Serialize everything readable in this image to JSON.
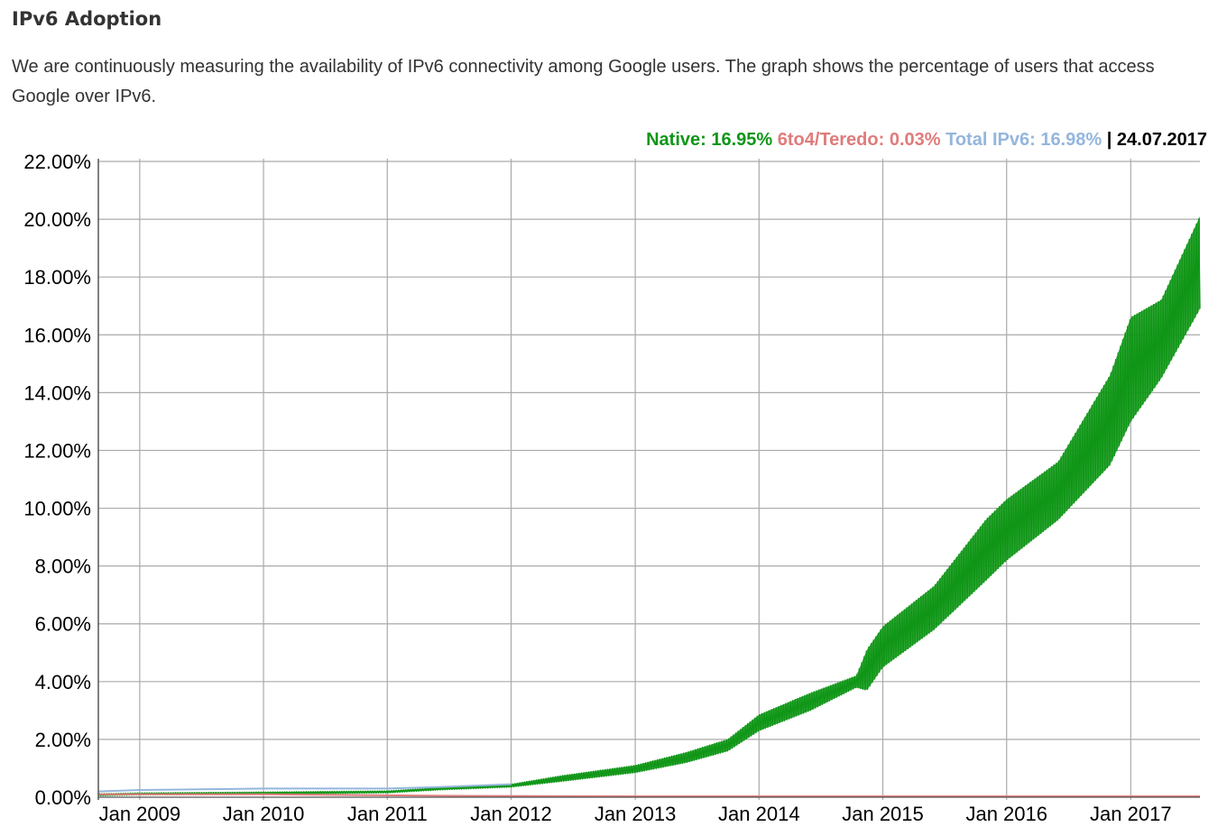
{
  "page": {
    "heading": "IPv6 Adoption",
    "intro": "We are continuously measuring the availability of IPv6 connectivity among Google users. The graph shows the percentage of users that access Google over IPv6."
  },
  "legend": {
    "native": "Native: 16.95%",
    "teredo": "6to4/Teredo: 0.03%",
    "total": "Total IPv6: 16.98%",
    "separator": "|",
    "date": "24.07.2017"
  },
  "colors": {
    "native": "#109618",
    "teredo": "#e07b7b",
    "total": "#94b6dd",
    "grid": "#aaaaaa"
  },
  "chart_data": {
    "type": "area",
    "xlim": [
      "2008-09-01",
      "2017-07-24"
    ],
    "ylim": [
      0,
      22
    ],
    "grid": true,
    "x_ticks": [
      {
        "date": "2009-01-01",
        "label": "Jan 2009"
      },
      {
        "date": "2010-01-01",
        "label": "Jan 2010"
      },
      {
        "date": "2011-01-01",
        "label": "Jan 2011"
      },
      {
        "date": "2012-01-01",
        "label": "Jan 2012"
      },
      {
        "date": "2013-01-01",
        "label": "Jan 2013"
      },
      {
        "date": "2014-01-01",
        "label": "Jan 2014"
      },
      {
        "date": "2015-01-01",
        "label": "Jan 2015"
      },
      {
        "date": "2016-01-01",
        "label": "Jan 2016"
      },
      {
        "date": "2017-01-01",
        "label": "Jan 2017"
      }
    ],
    "y_ticks": [
      {
        "value": 0,
        "label": "0.00%"
      },
      {
        "value": 2,
        "label": "2.00%"
      },
      {
        "value": 4,
        "label": "4.00%"
      },
      {
        "value": 6,
        "label": "6.00%"
      },
      {
        "value": 8,
        "label": "8.00%"
      },
      {
        "value": 10,
        "label": "10.00%"
      },
      {
        "value": 12,
        "label": "12.00%"
      },
      {
        "value": 14,
        "label": "14.00%"
      },
      {
        "value": 16,
        "label": "16.00%"
      },
      {
        "value": 18,
        "label": "18.00%"
      },
      {
        "value": 20,
        "label": "20.00%"
      },
      {
        "value": 22,
        "label": "22.00%"
      }
    ],
    "series": [
      {
        "name": "Native",
        "color": "#109618",
        "points": [
          {
            "date": "2008-09-01",
            "low": 0.05,
            "high": 0.12
          },
          {
            "date": "2009-01-01",
            "low": 0.08,
            "high": 0.15
          },
          {
            "date": "2010-01-01",
            "low": 0.1,
            "high": 0.18
          },
          {
            "date": "2011-01-01",
            "low": 0.15,
            "high": 0.22
          },
          {
            "date": "2011-06-01",
            "low": 0.25,
            "high": 0.33
          },
          {
            "date": "2012-01-01",
            "low": 0.35,
            "high": 0.45
          },
          {
            "date": "2012-06-01",
            "low": 0.55,
            "high": 0.75
          },
          {
            "date": "2013-01-01",
            "low": 0.85,
            "high": 1.1
          },
          {
            "date": "2013-06-01",
            "low": 1.2,
            "high": 1.55
          },
          {
            "date": "2013-10-01",
            "low": 1.6,
            "high": 2.0
          },
          {
            "date": "2014-01-01",
            "low": 2.3,
            "high": 2.85
          },
          {
            "date": "2014-06-01",
            "low": 3.0,
            "high": 3.6
          },
          {
            "date": "2014-10-15",
            "low": 3.8,
            "high": 4.2
          },
          {
            "date": "2014-11-15",
            "low": 3.7,
            "high": 5.1
          },
          {
            "date": "2015-01-01",
            "low": 4.5,
            "high": 5.9
          },
          {
            "date": "2015-06-01",
            "low": 5.8,
            "high": 7.3
          },
          {
            "date": "2015-11-01",
            "low": 7.5,
            "high": 9.6
          },
          {
            "date": "2016-01-01",
            "low": 8.2,
            "high": 10.3
          },
          {
            "date": "2016-06-01",
            "low": 9.6,
            "high": 11.6
          },
          {
            "date": "2016-11-01",
            "low": 11.5,
            "high": 14.6
          },
          {
            "date": "2017-01-01",
            "low": 13.0,
            "high": 16.6
          },
          {
            "date": "2017-04-01",
            "low": 14.5,
            "high": 17.2
          },
          {
            "date": "2017-07-24",
            "low": 16.9,
            "high": 20.1
          }
        ]
      },
      {
        "name": "6to4/Teredo",
        "color": "#e07b7b",
        "points": [
          {
            "date": "2008-09-01",
            "value": 0.1
          },
          {
            "date": "2010-01-01",
            "value": 0.1
          },
          {
            "date": "2011-06-01",
            "value": 0.05
          },
          {
            "date": "2013-01-01",
            "value": 0.03
          },
          {
            "date": "2017-07-24",
            "value": 0.03
          }
        ]
      },
      {
        "name": "Total IPv6",
        "color": "#94b6dd",
        "points": [
          {
            "date": "2008-09-01",
            "value": 0.2
          },
          {
            "date": "2009-01-01",
            "value": 0.25
          },
          {
            "date": "2010-01-01",
            "value": 0.3
          },
          {
            "date": "2011-01-01",
            "value": 0.3
          },
          {
            "date": "2011-06-01",
            "value": 0.35
          },
          {
            "date": "2012-01-01",
            "value": 0.45
          }
        ]
      }
    ]
  }
}
